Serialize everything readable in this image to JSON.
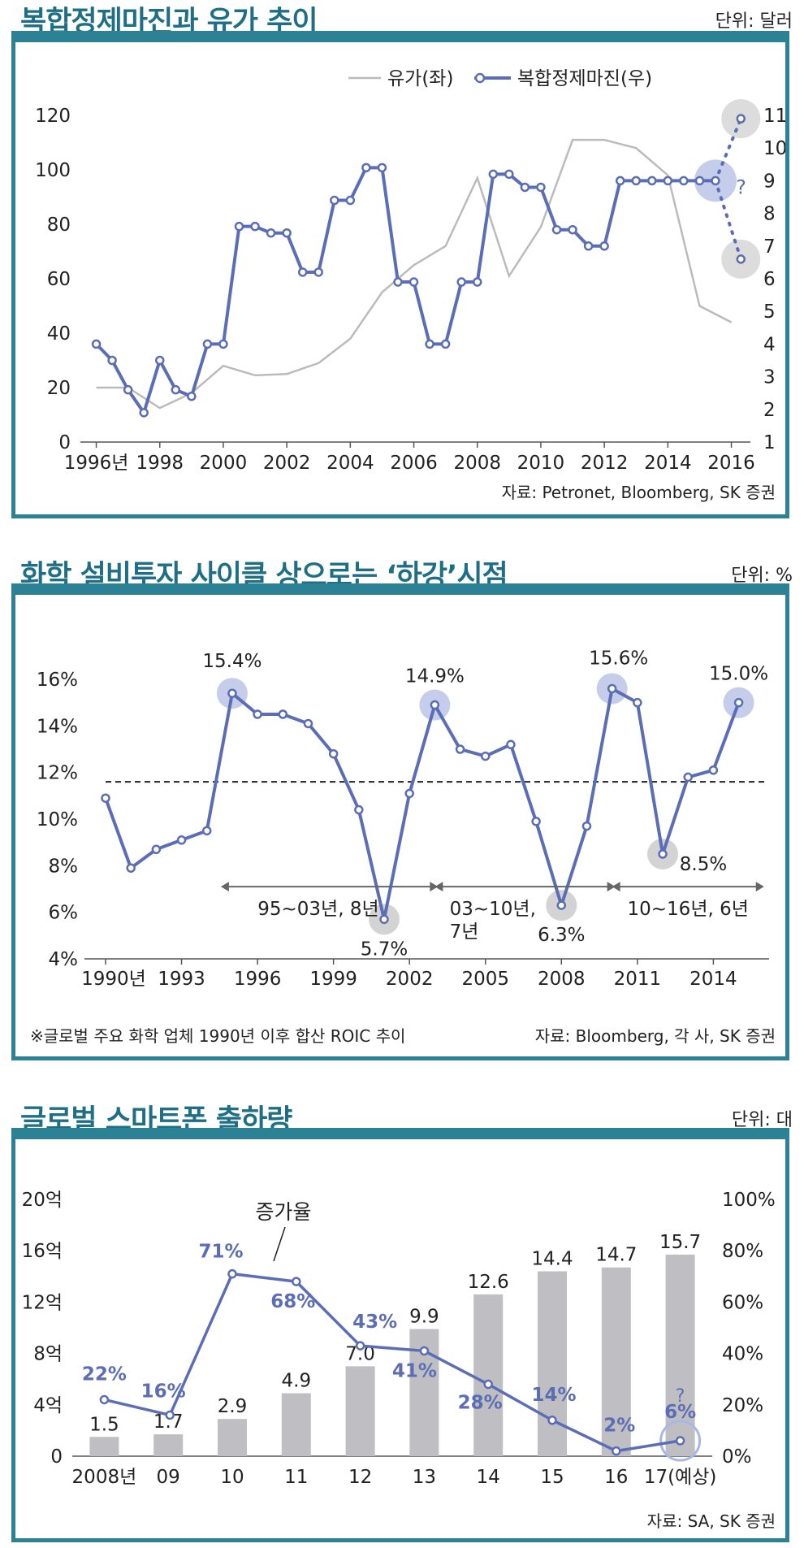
{
  "charts": [
    {
      "title": "복합정제마진과 유가 추이",
      "unit": "단위: 달러",
      "source": "자료: Petronet, Bloomberg, SK 증권"
    },
    {
      "title": "화학 설비투자 사이클 상으로는 ‘하강’시점",
      "unit": "단위: %",
      "source": "자료: Bloomberg, 각 사, SK 증권",
      "note": "※글로벌 주요 화학 업체 1990년 이후 합산 ROIC 추이"
    },
    {
      "title": "글로벌 스마트폰 출하량",
      "unit": "단위: 대",
      "source": "자료: SA, SK 증권"
    }
  ],
  "chart_data": [
    {
      "type": "line",
      "title": "복합정제마진과 유가 추이",
      "x_tick_labels": [
        "1996년",
        "1998",
        "2000",
        "2002",
        "2004",
        "2006",
        "2008",
        "2010",
        "2012",
        "2014",
        "2016"
      ],
      "y_left_ticks": [
        "0",
        "20",
        "40",
        "60",
        "80",
        "100",
        "120"
      ],
      "y_right_ticks": [
        "1",
        "2",
        "3",
        "4",
        "5",
        "6",
        "7",
        "8",
        "9",
        "10",
        "11"
      ],
      "ylim_left": [
        0,
        120
      ],
      "ylim_right": [
        1,
        11
      ],
      "legend": [
        "유가(좌)",
        "복합정제마진(우)"
      ],
      "legend_position": "top-right",
      "series": [
        {
          "name": "유가(좌)",
          "axis": "left",
          "color": "#bbbbbb",
          "x": [
            1996,
            1997,
            1998,
            1999,
            2000,
            2001,
            2002,
            2003,
            2004,
            2005,
            2006,
            2007,
            2008,
            2009,
            2010,
            2011,
            2012,
            2013,
            2014,
            2015,
            2016
          ],
          "y": [
            20,
            20,
            12.5,
            18,
            28,
            24.5,
            25,
            29,
            38,
            55,
            65,
            72,
            97,
            61,
            79,
            111,
            111,
            108,
            98,
            50,
            44
          ]
        },
        {
          "name": "복합정제마진(우)",
          "axis": "right",
          "color": "#5b6db5",
          "x": [
            1996,
            1996.5,
            1997,
            1997.5,
            1998,
            1998.5,
            1999,
            1999.5,
            2000,
            2000.5,
            2001,
            2001.5,
            2002,
            2002.5,
            2003,
            2003.5,
            2004,
            2004.5,
            2005,
            2005.5,
            2006,
            2006.5,
            2007,
            2007.5,
            2008,
            2008.5,
            2009,
            2009.5,
            2010,
            2010.5,
            2011,
            2011.5,
            2012,
            2012.5,
            2013,
            2013.5,
            2014,
            2014.5,
            2015,
            2015.5
          ],
          "y": [
            4.0,
            3.5,
            2.6,
            1.9,
            3.5,
            2.6,
            2.4,
            4.0,
            4.0,
            7.6,
            7.6,
            7.4,
            7.4,
            6.2,
            6.2,
            8.4,
            8.4,
            9.4,
            9.4,
            5.9,
            5.9,
            4.0,
            4.0,
            5.9,
            5.9,
            9.2,
            9.2,
            8.8,
            8.8,
            7.5,
            7.5,
            7.0,
            7.0,
            9.0,
            9.0,
            9.0,
            9.0,
            9.0,
            9.0,
            9.0
          ]
        }
      ],
      "annotation": "?"
    },
    {
      "type": "line",
      "title": "화학 설비투자 사이클 상으로는 ‘하강’시점",
      "x_tick_labels": [
        "1990년",
        "1993",
        "1996",
        "1999",
        "2002",
        "2005",
        "2008",
        "2011",
        "2014"
      ],
      "y_ticks": [
        "4%",
        "6%",
        "8%",
        "10%",
        "12%",
        "14%",
        "16%"
      ],
      "ylim": [
        4,
        16
      ],
      "x": [
        1990,
        1991,
        1992,
        1993,
        1994,
        1995,
        1996,
        1997,
        1998,
        1999,
        2000,
        2001,
        2002,
        2003,
        2004,
        2005,
        2006,
        2007,
        2008,
        2009,
        2010,
        2011,
        2012,
        2013,
        2014,
        2015
      ],
      "y": [
        10.9,
        7.9,
        8.7,
        9.1,
        9.5,
        15.4,
        14.5,
        14.5,
        14.1,
        12.8,
        10.4,
        5.7,
        11.1,
        14.9,
        13.0,
        12.7,
        13.2,
        9.9,
        6.3,
        9.7,
        15.6,
        15.0,
        8.5,
        11.8,
        12.1,
        15.0
      ],
      "reference_line": 11.6,
      "data_labels": [
        {
          "x": 1995,
          "text": "15.4%"
        },
        {
          "x": 2001,
          "text": "5.7%"
        },
        {
          "x": 2003,
          "text": "14.9%"
        },
        {
          "x": 2008,
          "text": "6.3%"
        },
        {
          "x": 2010,
          "text": "15.6%"
        },
        {
          "x": 2012,
          "text": "8.5%"
        },
        {
          "x": 2015,
          "text": "15.0%"
        }
      ],
      "cycles": [
        {
          "from": 1995,
          "to": 2003,
          "label": "95~03년, 8년"
        },
        {
          "from": 2003,
          "to": 2010,
          "label": "03~10년, 7년"
        },
        {
          "from": 2010,
          "to": 2016,
          "label": "10~16년, 6년"
        }
      ]
    },
    {
      "type": "bar",
      "title": "글로벌 스마트폰 출하량",
      "categories": [
        "2008년",
        "09",
        "10",
        "11",
        "12",
        "13",
        "14",
        "15",
        "16",
        "17(예상)"
      ],
      "y_left_ticks": [
        "0",
        "4억",
        "8억",
        "12억",
        "16억",
        "20억"
      ],
      "y_right_ticks": [
        "0%",
        "20%",
        "40%",
        "60%",
        "80%",
        "100%"
      ],
      "ylim": [
        0,
        20
      ],
      "ylim_right": [
        0,
        100
      ],
      "bar_values": [
        1.5,
        1.7,
        2.9,
        4.9,
        7.0,
        9.9,
        12.6,
        14.4,
        14.7,
        15.7
      ],
      "bar_labels": [
        "1.5",
        "1.7",
        "2.9",
        "4.9",
        "7.0",
        "9.9",
        "12.6",
        "14.4",
        "14.7",
        "15.7"
      ],
      "line_series_label": "증가율",
      "growth_values": [
        22,
        16,
        71,
        68,
        43,
        41,
        28,
        14,
        2,
        6
      ],
      "growth_labels": [
        "22%",
        "16%",
        "71%",
        "68%",
        "43%",
        "41%",
        "28%",
        "14%",
        "2%",
        "6%"
      ],
      "annotation": "?",
      "bar_color": "#bfbfc3",
      "line_color": "#5b6db5"
    }
  ]
}
